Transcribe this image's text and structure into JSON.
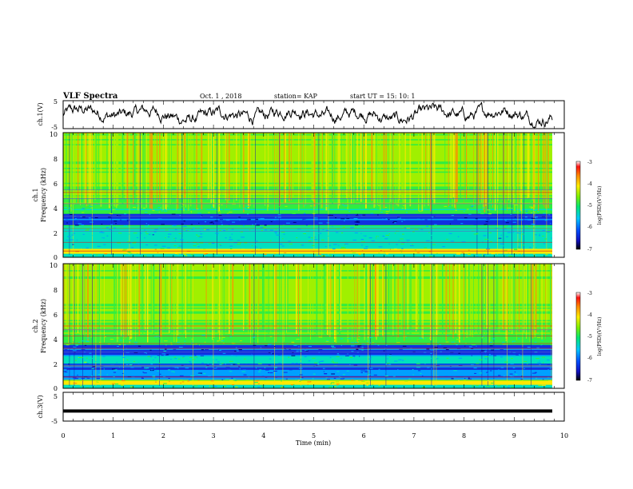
{
  "header": {
    "title": "VLF Spectra",
    "date": "Oct. 1 , 2018",
    "station": "station= KAP",
    "start": "start  UT =  15: 10: 1"
  },
  "chart_data": [
    {
      "type": "line",
      "name": "ch1-waveform",
      "ylabel": "ch.1(V)",
      "ylim": [
        -5,
        5
      ],
      "ytick_labels": [
        "5",
        "-5"
      ]
    },
    {
      "type": "heatmap",
      "name": "ch1-spectrogram",
      "ylabel": "ch.1\nFrequency (kHz)",
      "ylabel_line1": "ch.1",
      "ylabel_line2": "Frequency (kHz)",
      "ylim": [
        0,
        10
      ],
      "ytick_labels": [
        "0",
        "2",
        "4",
        "6",
        "8",
        "10"
      ],
      "colorbar": {
        "label": "log(PSD)(V²/Hz)",
        "range": [
          -7,
          -3
        ],
        "tick_labels": [
          "-3",
          "-4",
          "-5",
          "-6",
          "-7"
        ]
      }
    },
    {
      "type": "heatmap",
      "name": "ch2-spectrogram",
      "ylabel": "ch.2\nFrequency (kHz)",
      "ylabel_line1": "ch.2",
      "ylabel_line2": "Frequency (kHz)",
      "ylim": [
        0,
        10
      ],
      "ytick_labels": [
        "0",
        "2",
        "4",
        "6",
        "8",
        "10"
      ],
      "colorbar": {
        "label": "log(PSD)(V²/Hz)",
        "range": [
          -7,
          -3
        ],
        "tick_labels": [
          "-3",
          "-4",
          "-5",
          "-6",
          "-7"
        ]
      }
    },
    {
      "type": "line",
      "name": "ch3-waveform",
      "ylabel": "ch.3(V)",
      "ylim": [
        -5,
        5
      ],
      "ytick_labels": [
        "5",
        "-5"
      ],
      "level": -1.5
    }
  ],
  "xaxis": {
    "label": "Time (min)",
    "range": [
      0,
      10
    ],
    "tick_labels": [
      "0",
      "1",
      "2",
      "3",
      "4",
      "5",
      "6",
      "7",
      "8",
      "9",
      "10"
    ]
  }
}
